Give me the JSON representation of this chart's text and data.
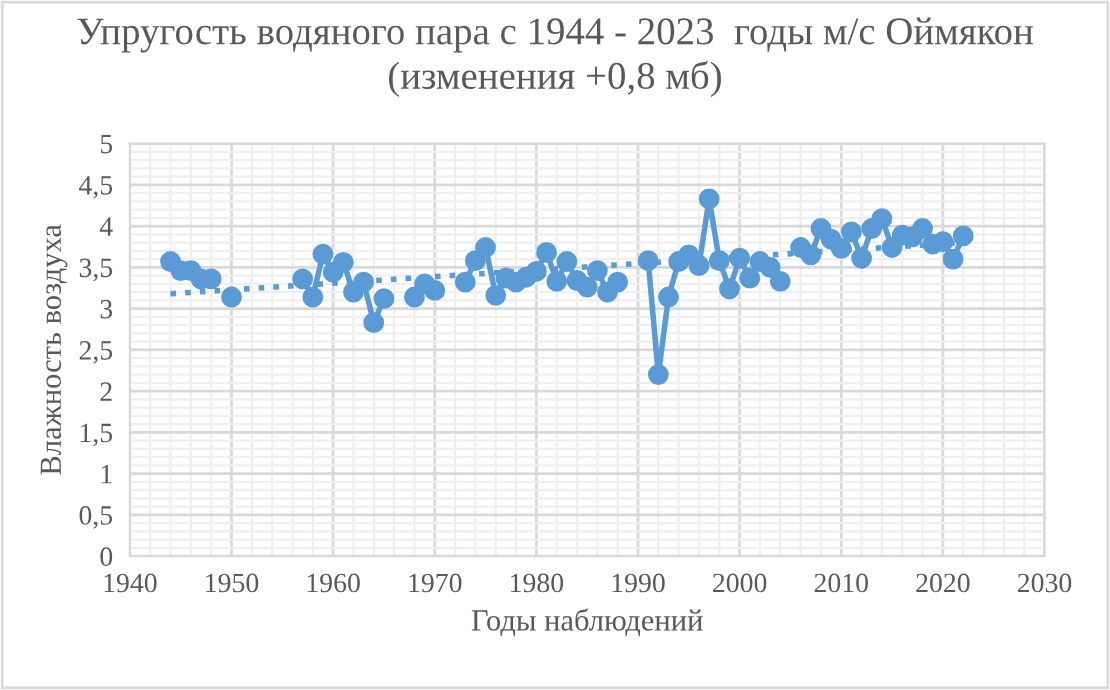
{
  "chart_data": {
    "type": "line",
    "title": "Упругость водяного пара с 1944 - 2023  годы м/с Оймякон\n(изменения +0,8 мб)",
    "xlabel": "Годы наблюдений",
    "ylabel": "Влажность воздуха",
    "xlim": [
      1940,
      2030
    ],
    "xticks": [
      1940,
      1950,
      1960,
      1970,
      1980,
      1990,
      2000,
      2010,
      2020,
      2030
    ],
    "ylim": [
      0,
      5
    ],
    "yticks": [
      {
        "value": 0,
        "label": "0"
      },
      {
        "value": 0.5,
        "label": "0,5"
      },
      {
        "value": 1,
        "label": "1"
      },
      {
        "value": 1.5,
        "label": "1,5"
      },
      {
        "value": 2,
        "label": "2"
      },
      {
        "value": 2.5,
        "label": "2,5"
      },
      {
        "value": 3,
        "label": "3"
      },
      {
        "value": 3.5,
        "label": "3,5"
      },
      {
        "value": 4,
        "label": "4"
      },
      {
        "value": 4.5,
        "label": "4,5"
      },
      {
        "value": 5,
        "label": "5"
      }
    ],
    "grid": true,
    "series": [
      {
        "color": "#5b9bd5",
        "marker": "circle",
        "line_style": "solid",
        "x": [
          1944,
          1945,
          1946,
          1947,
          1948,
          1949,
          1950,
          1951,
          1952,
          1953,
          1954,
          1955,
          1956,
          1957,
          1958,
          1959,
          1960,
          1961,
          1962,
          1963,
          1964,
          1965,
          1966,
          1967,
          1968,
          1969,
          1970,
          1971,
          1972,
          1973,
          1974,
          1975,
          1976,
          1977,
          1978,
          1979,
          1980,
          1981,
          1982,
          1983,
          1984,
          1985,
          1986,
          1987,
          1988,
          1989,
          1990,
          1991,
          1992,
          1993,
          1994,
          1995,
          1996,
          1997,
          1998,
          1999,
          2000,
          2001,
          2002,
          2003,
          2004,
          2005,
          2006,
          2007,
          2008,
          2009,
          2010,
          2011,
          2012,
          2013,
          2014,
          2015,
          2016,
          2017,
          2018,
          2019,
          2020,
          2021,
          2022
        ],
        "values": [
          3.57,
          3.46,
          3.46,
          3.36,
          3.36,
          null,
          3.14,
          null,
          null,
          null,
          null,
          null,
          null,
          3.36,
          3.14,
          3.66,
          3.44,
          3.56,
          3.2,
          3.32,
          2.83,
          3.12,
          null,
          null,
          3.14,
          3.3,
          3.22,
          null,
          null,
          3.32,
          3.58,
          3.74,
          3.16,
          3.37,
          3.32,
          3.38,
          3.45,
          3.68,
          3.33,
          3.57,
          3.34,
          3.26,
          3.46,
          3.2,
          3.32,
          null,
          null,
          3.58,
          2.2,
          3.14,
          3.57,
          3.65,
          3.52,
          4.33,
          3.58,
          3.24,
          3.61,
          3.37,
          3.57,
          3.5,
          3.33,
          null,
          3.74,
          3.65,
          3.97,
          3.84,
          3.73,
          3.93,
          3.61,
          3.97,
          4.09,
          3.74,
          3.89,
          3.87,
          3.97,
          3.78,
          3.81,
          3.6,
          3.88
        ]
      },
      {
        "color": "#5b9bd5",
        "marker": "none",
        "line_style": "dotted",
        "x": [
          1944,
          2022
        ],
        "values": [
          3.18,
          3.8
        ]
      }
    ]
  }
}
